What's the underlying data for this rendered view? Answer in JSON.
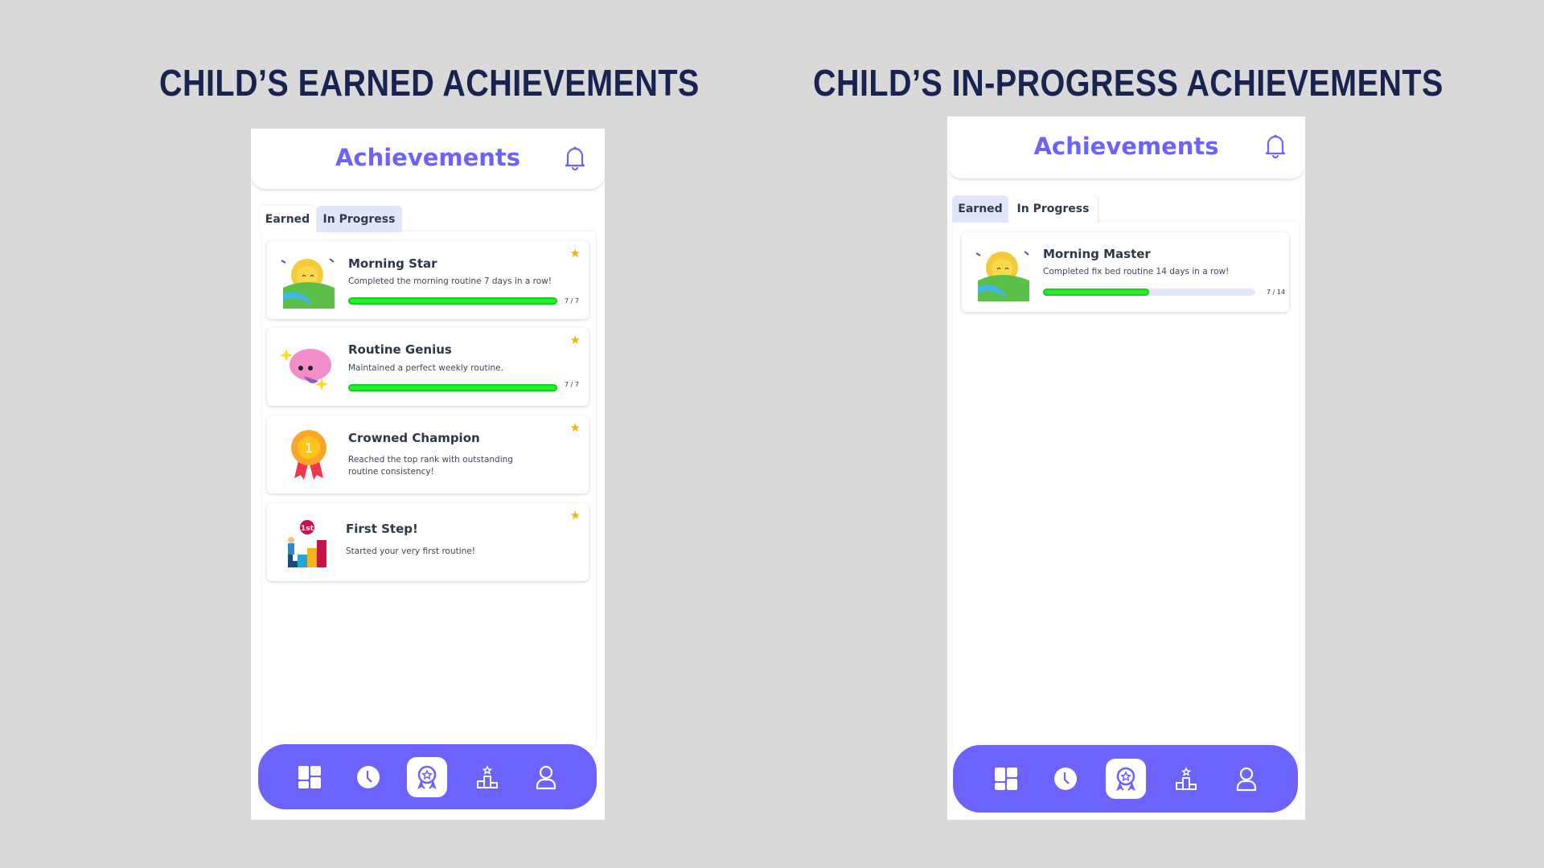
{
  "headings": {
    "earned": "CHILD’S EARNED ACHIEVEMENTS",
    "in_progress": "CHILD’S IN-PROGRESS ACHIEVEMENTS"
  },
  "app": {
    "title": "Achievements",
    "tabs": [
      "Earned",
      "In Progress"
    ]
  },
  "colors": {
    "accent": "#6c63ff",
    "progress": "#22f02a",
    "star": "#f7b500",
    "heading": "#18234f"
  },
  "earned_screen": {
    "active_tab": "Earned",
    "cards": [
      {
        "title": "Morning Star",
        "description": "Completed the morning routine 7 days in a row!",
        "progress": 1.0,
        "count": "7 / 7",
        "icon": "sun-field-icon"
      },
      {
        "title": "Routine Genius",
        "description": "Maintained a perfect weekly routine.",
        "progress": 1.0,
        "count": "7 / 7",
        "icon": "brain-icon"
      },
      {
        "title": "Crowned Champion",
        "description": "Reached the top rank with outstanding routine consistency!",
        "icon": "medal-icon",
        "medal_text": "1"
      },
      {
        "title": "First Step!",
        "description": "Started your very first routine!",
        "icon": "first-step-icon"
      }
    ]
  },
  "in_progress_screen": {
    "active_tab": "In Progress",
    "cards": [
      {
        "title": "Morning Master",
        "description": "Completed fix bed routine 14 days in a row!",
        "progress": 0.5,
        "count": "7 / 14",
        "icon": "sun-field-icon"
      }
    ]
  },
  "nav": [
    "dashboard-icon",
    "clock-icon",
    "achievement-icon",
    "leaderboard-icon",
    "profile-icon"
  ],
  "nav_active": "achievement-icon"
}
